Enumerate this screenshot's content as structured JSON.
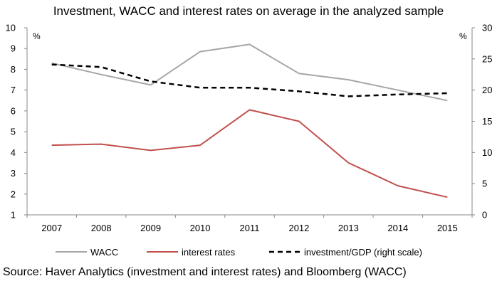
{
  "title": "Investment, WACC and interest rates on average in the analyzed sample",
  "source": "Source: Haver Analytics (investment and interest rates) and Bloomberg (WACC)",
  "chart_data": {
    "type": "line",
    "title": "Investment, WACC and interest rates on average in the analyzed sample",
    "categories": [
      "2007",
      "2008",
      "2009",
      "2010",
      "2011",
      "2012",
      "2013",
      "2014",
      "2015"
    ],
    "left_axis": {
      "unit": "%",
      "ylim": [
        1,
        10
      ],
      "ticks": [
        "1",
        "2",
        "3",
        "4",
        "5",
        "6",
        "7",
        "8",
        "9",
        "10"
      ]
    },
    "right_axis": {
      "unit": "%",
      "ylim": [
        0,
        30
      ],
      "ticks": [
        "0",
        "5",
        "10",
        "15",
        "20",
        "25",
        "30"
      ]
    },
    "grid": false,
    "legend_position": "bottom",
    "series": [
      {
        "name": "WACC",
        "axis": "left",
        "color": "#a6a6a6",
        "style": "solid",
        "values": [
          8.3,
          7.75,
          7.25,
          8.85,
          9.2,
          7.8,
          7.5,
          7.0,
          6.5
        ]
      },
      {
        "name": "interest rates",
        "axis": "left",
        "color": "#c0504d",
        "style": "solid",
        "values": [
          4.35,
          4.4,
          4.1,
          4.35,
          6.05,
          5.5,
          3.5,
          2.4,
          1.85
        ]
      },
      {
        "name": "investment/GDP (right scale)",
        "axis": "right",
        "color": "#000000",
        "style": "dashed",
        "values": [
          24.1,
          23.7,
          21.4,
          20.4,
          20.4,
          19.8,
          19.0,
          19.3,
          19.5
        ]
      }
    ]
  }
}
